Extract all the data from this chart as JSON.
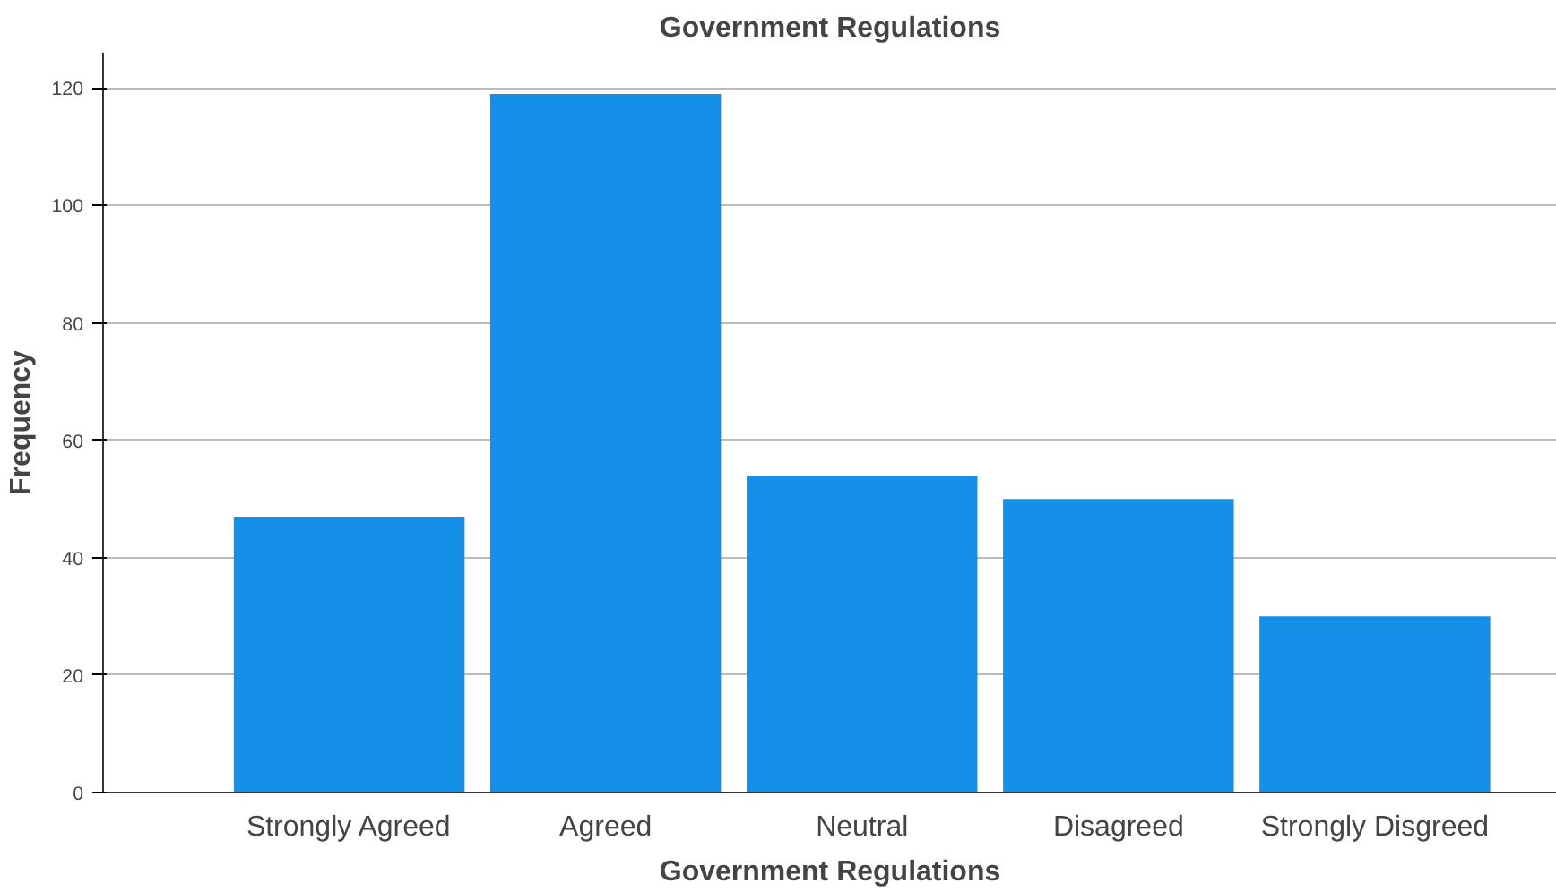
{
  "chart_data": {
    "type": "bar",
    "title": "Government Regulations",
    "xlabel": "Government Regulations",
    "ylabel": "Frequency",
    "categories": [
      "Strongly Agreed",
      "Agreed",
      "Neutral",
      "Disagreed",
      "Strongly Disgreed"
    ],
    "values": [
      47,
      119,
      54,
      50,
      30
    ],
    "color": "#1490e8",
    "ylim": [
      0,
      126
    ],
    "yticks": [
      0,
      20,
      40,
      60,
      80,
      100,
      120
    ],
    "grid": "y"
  }
}
